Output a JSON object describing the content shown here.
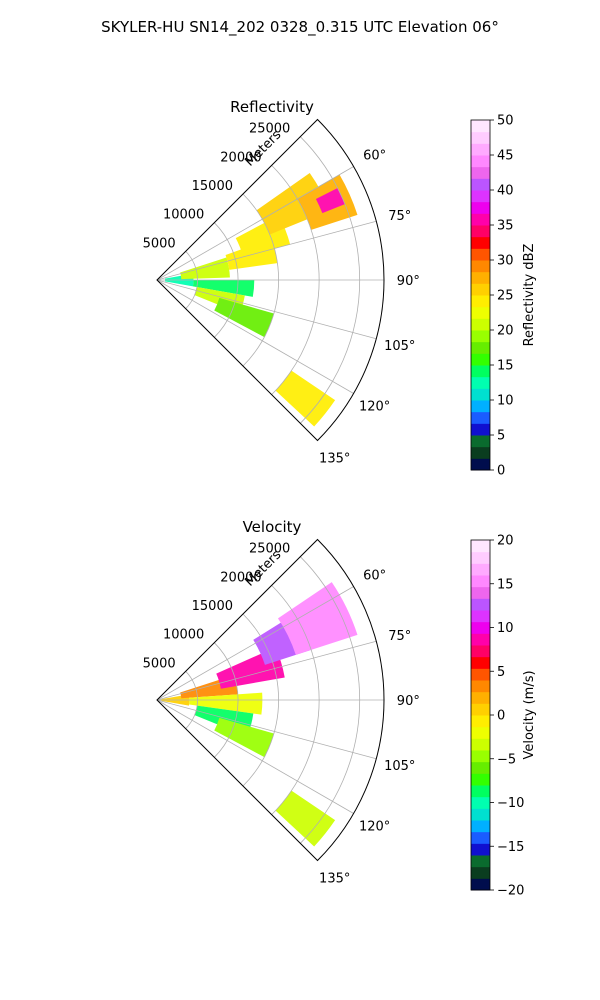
{
  "figure": {
    "suptitle": "SKYLER-HU  SN14_202  0328_0.315 UTC Elevation 06°"
  },
  "chart_data": [
    {
      "type": "heatmap",
      "subtype": "polar-sector (PPI radar)",
      "title": "Reflectivity",
      "radial_label": "Meters",
      "radial_ticks": [
        5000,
        10000,
        15000,
        20000,
        25000
      ],
      "radial_tick_labels": [
        "5000",
        "10000",
        "15000",
        "20000",
        "25000"
      ],
      "r_lim": [
        0,
        28000
      ],
      "angle_ticks_deg": [
        60,
        75,
        90,
        105,
        120,
        135
      ],
      "angle_tick_labels": [
        "60°",
        "75°",
        "90°",
        "105°",
        "120°",
        "135°"
      ],
      "theta_lim_deg": [
        45,
        135
      ],
      "theta_zero": "north",
      "theta_direction": "clockwise",
      "grid": true,
      "colorbar": {
        "label": "Reflectivity dBZ",
        "min": 0,
        "max": 50,
        "ticks": [
          0,
          5,
          10,
          15,
          20,
          25,
          30,
          35,
          40,
          45,
          50
        ],
        "tick_labels": [
          "0",
          "5",
          "10",
          "15",
          "20",
          "25",
          "30",
          "35",
          "40",
          "45",
          "50"
        ],
        "colors": [
          "#000d4d",
          "#0a3d1f",
          "#0a6b2e",
          "#1010d0",
          "#1a5cff",
          "#00b0ff",
          "#00e0d0",
          "#00ffb0",
          "#00ff60",
          "#33ff00",
          "#66ee00",
          "#99ff00",
          "#ccff00",
          "#eeff00",
          "#ffee00",
          "#ffd000",
          "#ffb000",
          "#ff8800",
          "#ff5500",
          "#ff0000",
          "#ff0066",
          "#ff00aa",
          "#ee00ee",
          "#dd33ff",
          "#bb55ff",
          "#ee66ee",
          "#ff88ff",
          "#ffaaff",
          "#ffccff",
          "#ffe6ff"
        ]
      },
      "regions": [
        {
          "r": [
            1000,
            4500
          ],
          "theta": [
            80,
            100
          ],
          "value": 12
        },
        {
          "r": [
            3000,
            9000
          ],
          "theta": [
            72,
            88
          ],
          "value": 20
        },
        {
          "r": [
            4500,
            12000
          ],
          "theta": [
            90,
            100
          ],
          "value": 14
        },
        {
          "r": [
            5000,
            11000
          ],
          "theta": [
            100,
            112
          ],
          "value": 20
        },
        {
          "r": [
            9000,
            15000
          ],
          "theta": [
            70,
            82
          ],
          "value": 24
        },
        {
          "r": [
            11000,
            17000
          ],
          "theta": [
            62,
            75
          ],
          "value": 24
        },
        {
          "r": [
            15000,
            23000
          ],
          "theta": [
            55,
            68
          ],
          "value": 26
        },
        {
          "r": [
            20000,
            26000
          ],
          "theta": [
            60,
            72
          ],
          "value": 28
        },
        {
          "r": [
            22000,
            25000
          ],
          "theta": [
            63,
            68
          ],
          "value": 36
        },
        {
          "r": [
            8000,
            15000
          ],
          "theta": [
            106,
            118
          ],
          "value": 18
        },
        {
          "r": [
            20000,
            26500
          ],
          "theta": [
            124,
            133
          ],
          "value": 24
        }
      ]
    },
    {
      "type": "heatmap",
      "subtype": "polar-sector (PPI radar)",
      "title": "Velocity",
      "radial_label": "Meters",
      "radial_ticks": [
        5000,
        10000,
        15000,
        20000,
        25000
      ],
      "radial_tick_labels": [
        "5000",
        "10000",
        "15000",
        "20000",
        "25000"
      ],
      "r_lim": [
        0,
        28000
      ],
      "angle_ticks_deg": [
        60,
        75,
        90,
        105,
        120,
        135
      ],
      "angle_tick_labels": [
        "60°",
        "75°",
        "90°",
        "105°",
        "120°",
        "135°"
      ],
      "theta_lim_deg": [
        45,
        135
      ],
      "theta_zero": "north",
      "theta_direction": "clockwise",
      "grid": true,
      "colorbar": {
        "label": "Velocity (m/s)",
        "min": -20,
        "max": 20,
        "ticks": [
          -20,
          -15,
          -10,
          -5,
          0,
          5,
          10,
          15,
          20
        ],
        "tick_labels": [
          "−20",
          "−15",
          "−10",
          "−5",
          "0",
          "5",
          "10",
          "15",
          "20"
        ],
        "colors": [
          "#000d4d",
          "#0a3d1f",
          "#0a6b2e",
          "#1010d0",
          "#1a5cff",
          "#00b0ff",
          "#00e0d0",
          "#00ffb0",
          "#00ff60",
          "#33ff00",
          "#66ee00",
          "#99ff00",
          "#ccff00",
          "#eeff00",
          "#ffee00",
          "#ffd000",
          "#ffb000",
          "#ff8800",
          "#ff5500",
          "#ff0000",
          "#ff0066",
          "#ff00aa",
          "#ee00ee",
          "#dd33ff",
          "#bb55ff",
          "#ee66ee",
          "#ff88ff",
          "#ffaaff",
          "#ffccff",
          "#ffe6ff"
        ]
      },
      "regions": [
        {
          "r": [
            500,
            4000
          ],
          "theta": [
            80,
            100
          ],
          "value": 1
        },
        {
          "r": [
            3000,
            10000
          ],
          "theta": [
            72,
            86
          ],
          "value": 3
        },
        {
          "r": [
            4000,
            13000
          ],
          "theta": [
            86,
            98
          ],
          "value": -2
        },
        {
          "r": [
            8000,
            16000
          ],
          "theta": [
            66,
            80
          ],
          "value": 9
        },
        {
          "r": [
            5000,
            12000
          ],
          "theta": [
            98,
            112
          ],
          "value": -9
        },
        {
          "r": [
            14000,
            20000
          ],
          "theta": [
            58,
            72
          ],
          "value": 12
        },
        {
          "r": [
            18000,
            26000
          ],
          "theta": [
            56,
            72
          ],
          "value": 15
        },
        {
          "r": [
            8000,
            15000
          ],
          "theta": [
            106,
            118
          ],
          "value": -5
        },
        {
          "r": [
            20000,
            26500
          ],
          "theta": [
            124,
            133
          ],
          "value": -3
        }
      ]
    }
  ]
}
